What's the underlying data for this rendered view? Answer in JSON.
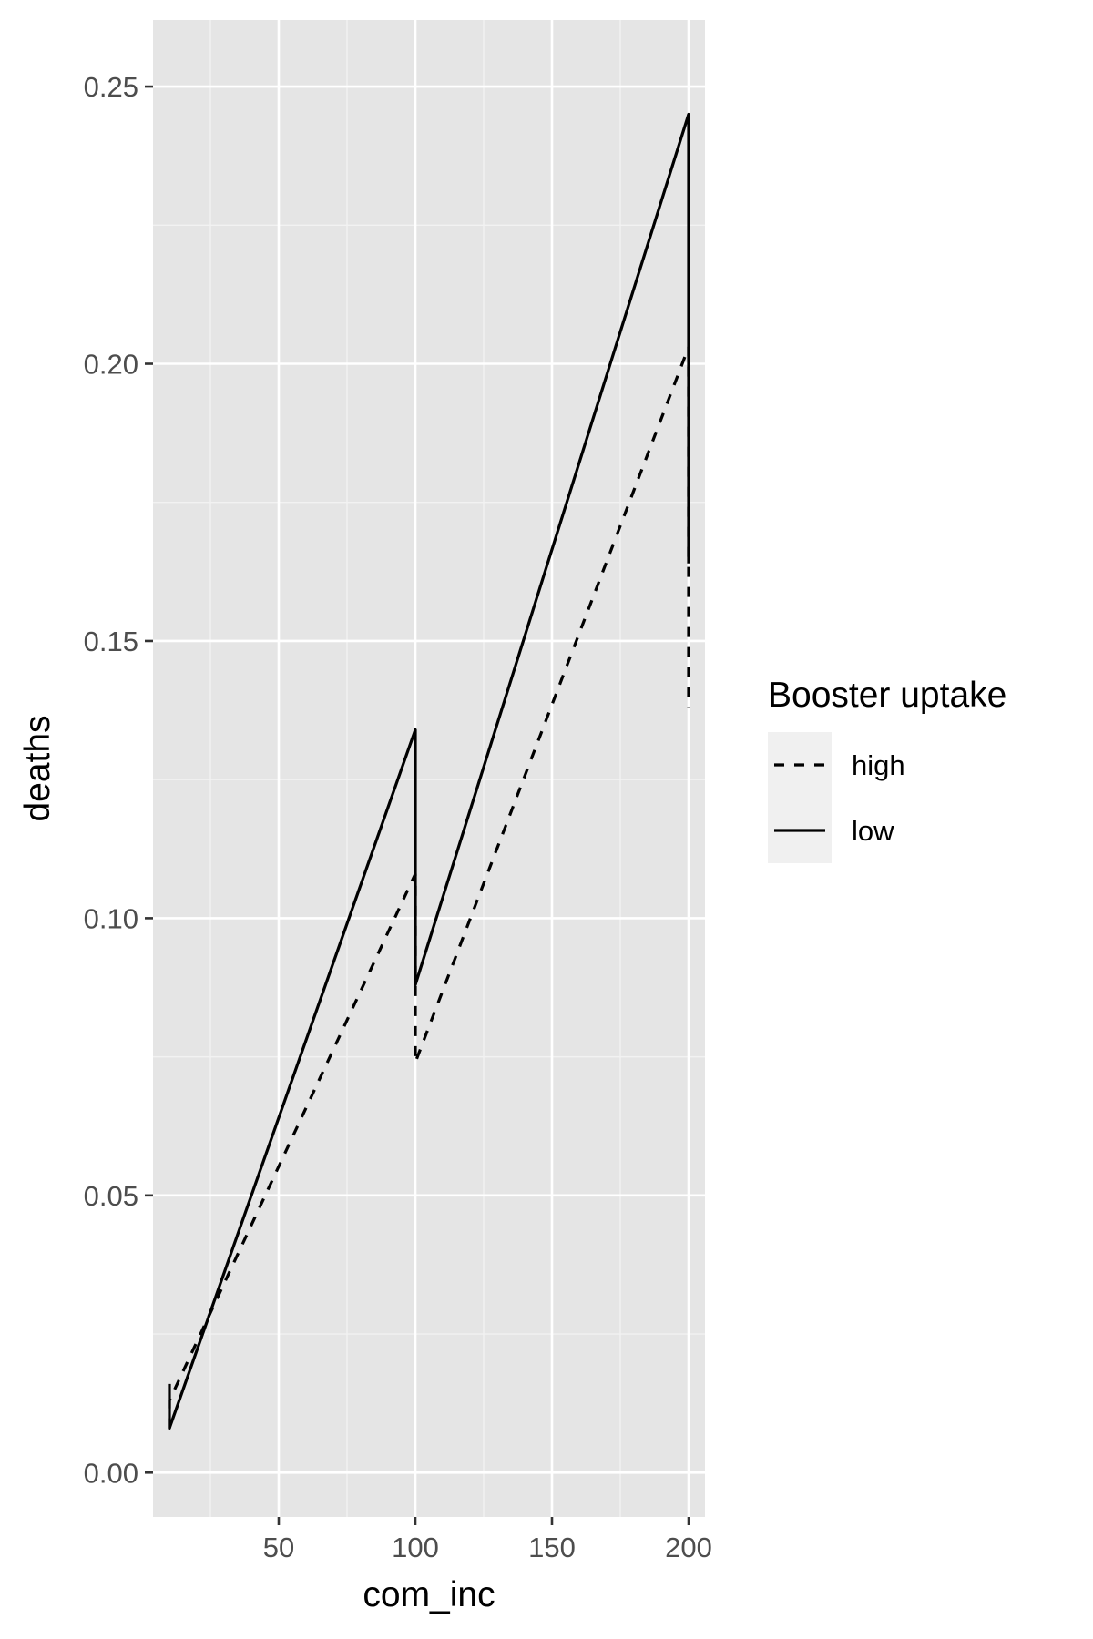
{
  "chart_data": {
    "type": "line",
    "title": "",
    "xlabel": "com_inc",
    "ylabel": "deaths",
    "xlim": [
      4,
      206
    ],
    "ylim": [
      -0.008,
      0.262
    ],
    "x_ticks": [
      50,
      100,
      150,
      200
    ],
    "x_tick_labels": [
      "50",
      "100",
      "150",
      "200"
    ],
    "y_ticks": [
      0.0,
      0.05,
      0.1,
      0.15,
      0.2,
      0.25
    ],
    "y_tick_labels": [
      "0.00",
      "0.05",
      "0.10",
      "0.15",
      "0.20",
      "0.25"
    ],
    "grid": true,
    "legend": {
      "title": "Booster uptake",
      "placement": "right"
    },
    "series": [
      {
        "name": "high",
        "linetype": "dashed",
        "points": [
          {
            "x": 10,
            "y": 0.008
          },
          {
            "x": 10,
            "y": 0.013
          },
          {
            "x": 100,
            "y": 0.108
          },
          {
            "x": 100,
            "y": 0.074
          },
          {
            "x": 200,
            "y": 0.203
          },
          {
            "x": 200,
            "y": 0.138
          }
        ]
      },
      {
        "name": "low",
        "linetype": "solid",
        "points": [
          {
            "x": 10,
            "y": 0.016
          },
          {
            "x": 10,
            "y": 0.008
          },
          {
            "x": 100,
            "y": 0.134
          },
          {
            "x": 100,
            "y": 0.088
          },
          {
            "x": 200,
            "y": 0.245
          },
          {
            "x": 200,
            "y": 0.164
          }
        ]
      }
    ]
  }
}
